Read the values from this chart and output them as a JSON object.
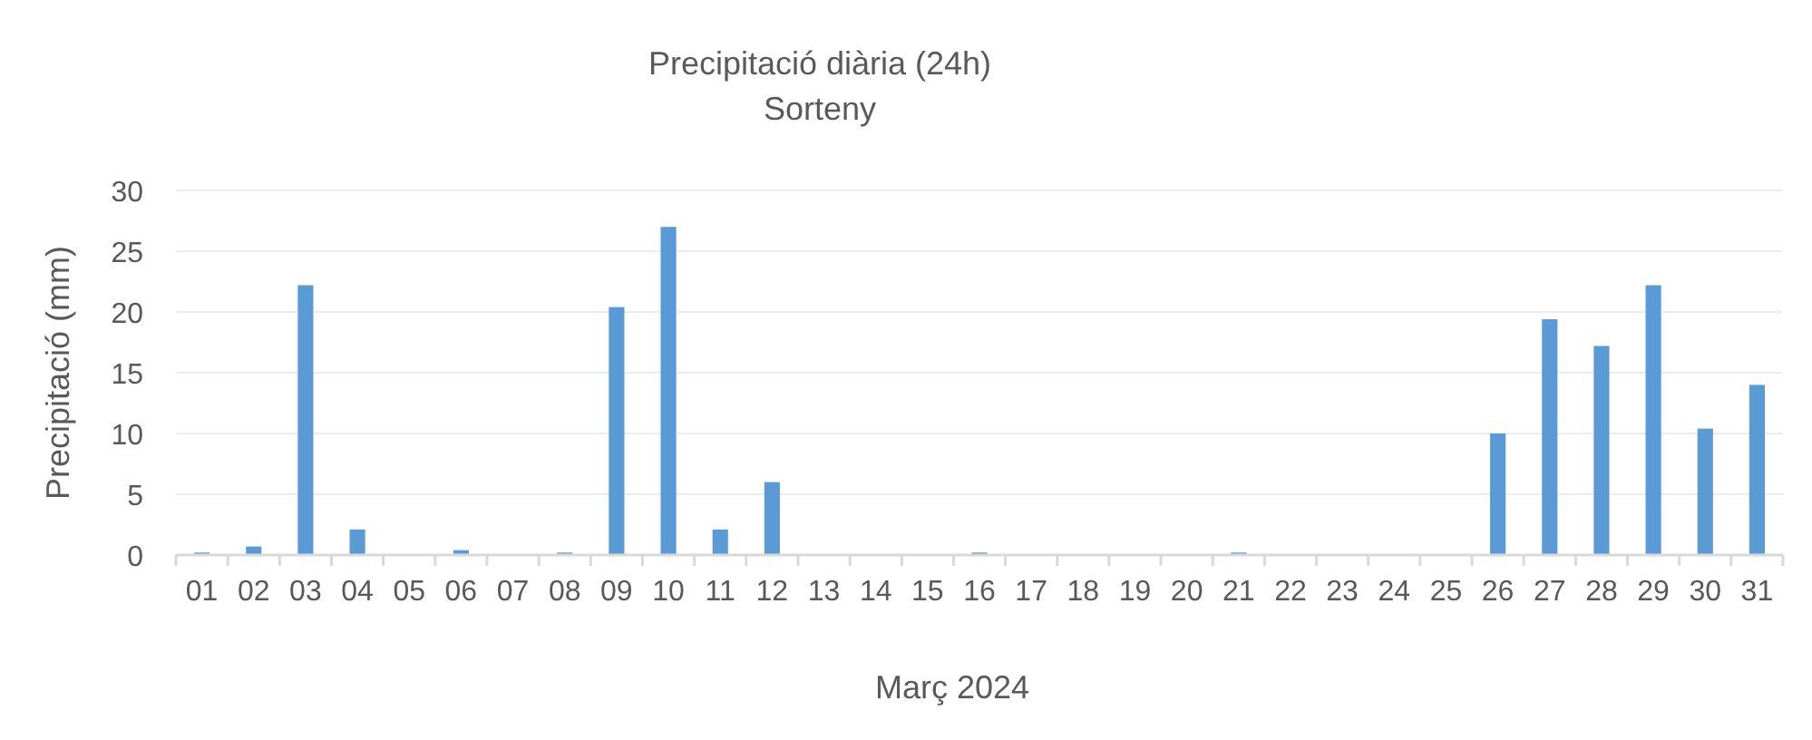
{
  "chart_data": {
    "type": "bar",
    "title": "Precipitació diària (24h)",
    "subtitle": "Sorteny",
    "xlabel": "Març 2024",
    "ylabel": "Precipitació (mm)",
    "categories": [
      "01",
      "02",
      "03",
      "04",
      "05",
      "06",
      "07",
      "08",
      "09",
      "10",
      "11",
      "12",
      "13",
      "14",
      "15",
      "16",
      "17",
      "18",
      "19",
      "20",
      "21",
      "22",
      "23",
      "24",
      "25",
      "26",
      "27",
      "28",
      "29",
      "30",
      "31"
    ],
    "values": [
      0.2,
      0.7,
      22.2,
      2.1,
      0,
      0.4,
      0,
      0.2,
      20.4,
      27,
      2.1,
      6,
      0,
      0,
      0,
      0.2,
      0,
      0,
      0,
      0,
      0.2,
      0,
      0,
      0,
      0,
      10,
      19.4,
      17.2,
      22.2,
      10.4,
      14
    ],
    "color": "#5b9bd5",
    "ylim": [
      0,
      30
    ],
    "yticks": [
      0,
      5,
      10,
      15,
      20,
      25,
      30
    ],
    "grid": "y"
  }
}
